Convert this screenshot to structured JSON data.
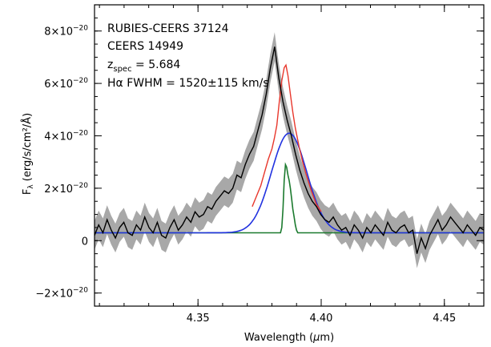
{
  "chart_data": {
    "type": "line",
    "annotations": [
      {
        "text": "RUBIES-CEERS 37124"
      },
      {
        "text": "CEERS 14949"
      },
      {
        "main": "z",
        "sub": "spec",
        "rest": " = 5.684"
      },
      {
        "text": "Hα FWHM = 1520±115 km/s"
      }
    ],
    "xlabel": {
      "prefix": "Wavelength (",
      "mu": "μ",
      "suffix": "m)"
    },
    "ylabel": {
      "main": "F",
      "sub": "λ",
      "rest": " (erg/s/cm²/Å)"
    },
    "xlim": [
      4.308,
      4.466
    ],
    "ylim": [
      -2.5e-20,
      9e-20
    ],
    "x_ticks": [
      {
        "value": 4.35,
        "label": "4.35"
      },
      {
        "value": 4.4,
        "label": "4.40"
      },
      {
        "value": 4.45,
        "label": "4.45"
      }
    ],
    "y_ticks": [
      {
        "value": -2e-20,
        "mant": "−2×10",
        "exp": "−20"
      },
      {
        "value": 0,
        "mant": "0",
        "exp": ""
      },
      {
        "value": 2e-20,
        "mant": "2×10",
        "exp": "−20"
      },
      {
        "value": 4e-20,
        "mant": "4×10",
        "exp": "−20"
      },
      {
        "value": 6e-20,
        "mant": "6×10",
        "exp": "−20"
      },
      {
        "value": 8e-20,
        "mant": "8×10",
        "exp": "−20"
      }
    ],
    "series": [
      {
        "role": "observed-spectrum",
        "color": "#000000",
        "band_color": "#a8a8a8",
        "error": 5.5e-21,
        "x": [
          4.308,
          4.3097,
          4.3114,
          4.3131,
          4.3148,
          4.3165,
          4.3182,
          4.3199,
          4.3216,
          4.3233,
          4.325,
          4.3267,
          4.3284,
          4.3301,
          4.3318,
          4.3335,
          4.3352,
          4.3369,
          4.3386,
          4.3403,
          4.342,
          4.3437,
          4.3454,
          4.3471,
          4.3488,
          4.3505,
          4.3522,
          4.3539,
          4.3556,
          4.3573,
          4.359,
          4.3607,
          4.3624,
          4.3641,
          4.3658,
          4.3675,
          4.3692,
          4.3709,
          4.3726,
          4.3743,
          4.376,
          4.3777,
          4.3794,
          4.3811,
          4.3828,
          4.3845,
          4.3862,
          4.3879,
          4.3896,
          4.3913,
          4.393,
          4.3947,
          4.3964,
          4.3981,
          4.3998,
          4.4015,
          4.4032,
          4.4049,
          4.4066,
          4.4083,
          4.41,
          4.4117,
          4.4134,
          4.4151,
          4.4168,
          4.4185,
          4.4202,
          4.4219,
          4.4236,
          4.4253,
          4.427,
          4.4287,
          4.4304,
          4.4321,
          4.4338,
          4.4355,
          4.4372,
          4.4389,
          4.4406,
          4.4423,
          4.444,
          4.4457,
          4.4474,
          4.4491,
          4.4508,
          4.4525,
          4.4542,
          4.4559,
          4.4576,
          4.4593,
          4.461,
          4.4627,
          4.4644,
          4.466
        ],
        "y": [
          2e-21,
          6e-21,
          3e-21,
          8e-21,
          4e-21,
          1e-21,
          5e-21,
          7e-21,
          3e-21,
          2e-21,
          6e-21,
          4e-21,
          9e-21,
          5e-21,
          3e-21,
          7e-21,
          2e-21,
          1e-21,
          5e-21,
          8e-21,
          4e-21,
          6e-21,
          9e-21,
          7e-21,
          1.1e-20,
          9e-21,
          1e-20,
          1.3e-20,
          1.2e-20,
          1.5e-20,
          1.7e-20,
          1.9e-20,
          1.8e-20,
          2e-20,
          2.5e-20,
          2.4e-20,
          2.9e-20,
          3.3e-20,
          3.6e-20,
          4.2e-20,
          4.8e-20,
          5.6e-20,
          6.6e-20,
          7.4e-20,
          6.2e-20,
          5.3e-20,
          4.6e-20,
          4e-20,
          3.3e-20,
          2.7e-20,
          2.2e-20,
          1.8e-20,
          1.5e-20,
          1.3e-20,
          1e-20,
          8e-21,
          7e-21,
          9e-21,
          6e-21,
          4e-21,
          5e-21,
          2e-21,
          6e-21,
          4e-21,
          1e-21,
          5e-21,
          3e-21,
          6e-21,
          4e-21,
          2e-21,
          7e-21,
          4e-21,
          3e-21,
          5e-21,
          6e-21,
          3e-21,
          4e-21,
          -5e-21,
          1e-21,
          -3e-21,
          2e-21,
          5e-21,
          8e-21,
          4e-21,
          6e-21,
          9e-21,
          7e-21,
          5e-21,
          3e-21,
          6e-21,
          4e-21,
          2e-21,
          5e-21,
          4e-21
        ]
      },
      {
        "role": "total-fit",
        "color": "#e8372c",
        "x": [
          4.372,
          4.3755,
          4.377,
          4.3785,
          4.38,
          4.381,
          4.382,
          4.383,
          4.384,
          4.385,
          4.3857,
          4.3865,
          4.3875,
          4.3885,
          4.3895,
          4.391,
          4.3925,
          4.394,
          4.396,
          4.398,
          4.4
        ],
        "y": [
          1.3e-20,
          2.1e-20,
          2.6e-20,
          3.1e-20,
          3.5e-20,
          3.9e-20,
          4.4e-20,
          5.3e-20,
          6.1e-20,
          6.6e-20,
          6.7e-20,
          6.3e-20,
          5.6e-20,
          4.9e-20,
          4.3e-20,
          3.6e-20,
          3e-20,
          2.5e-20,
          1.9e-20,
          1.4e-20,
          1.1e-20
        ]
      },
      {
        "role": "broad-component",
        "color": "#2233e0",
        "baseline": 3e-21,
        "amplitude": 3.8e-20,
        "center": 4.387,
        "sigma": 0.0072,
        "x_start": 4.308,
        "x_end": 4.466
      },
      {
        "role": "narrow-component",
        "color": "#1b7a2e",
        "x": [
          4.308,
          4.3835,
          4.384,
          4.3845,
          4.385,
          4.3855,
          4.386,
          4.3865,
          4.387,
          4.3875,
          4.388,
          4.3885,
          4.389,
          4.3895,
          4.39,
          4.3905,
          4.466
        ],
        "y": [
          3e-21,
          3e-21,
          5e-21,
          1.2e-20,
          2.3e-20,
          2.9e-20,
          2.8e-20,
          2.5e-20,
          2.3e-20,
          2e-20,
          1.6e-20,
          1.2e-20,
          9e-21,
          6e-21,
          4e-21,
          3e-21,
          3e-21
        ]
      }
    ]
  }
}
